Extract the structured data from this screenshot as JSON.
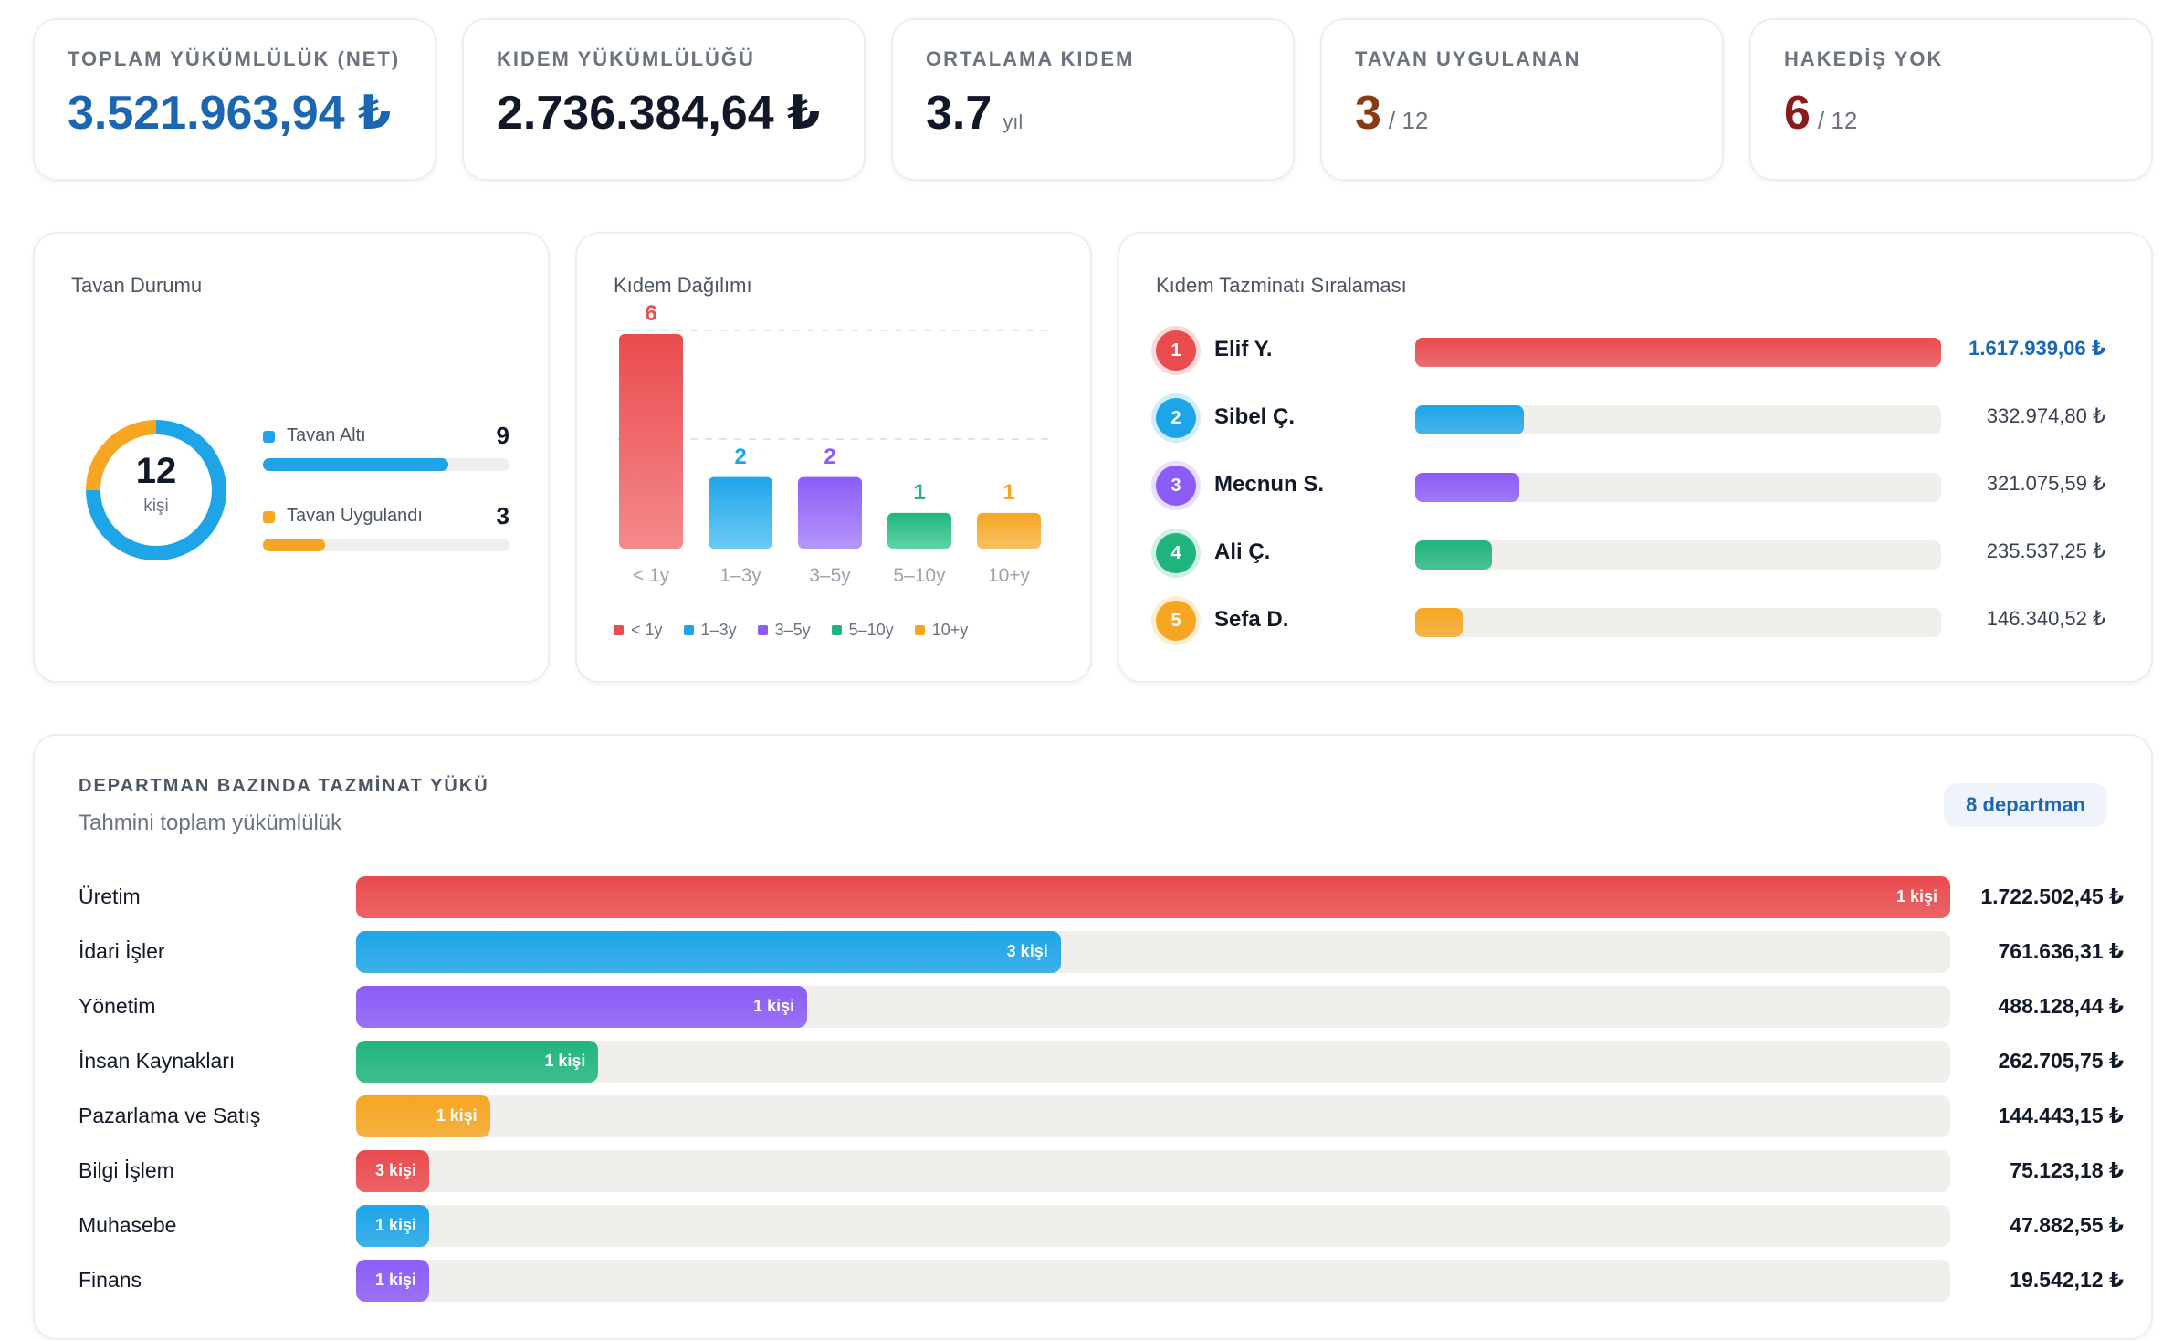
{
  "kpis": [
    {
      "label": "TOPLAM YÜKÜMLÜLÜK (NET)",
      "value": "3.521.963,94 ₺",
      "color": "#1a66b3"
    },
    {
      "label": "KIDEM YÜKÜMLÜLÜĞÜ",
      "value": "2.736.384,64 ₺",
      "color": "#111827"
    },
    {
      "label": "ORTALAMA KIDEM",
      "value": "3.7",
      "unit": "yıl",
      "color": "#111827"
    },
    {
      "label": "TAVAN UYGULANAN",
      "value": "3",
      "sub": "/ 12",
      "color": "#8a3a12"
    },
    {
      "label": "HAKEDİŞ YOK",
      "value": "6",
      "sub": "/ 12",
      "color": "#8b1c1c"
    }
  ],
  "tavan": {
    "title": "Tavan Durumu",
    "total": "12",
    "total_label": "kişi",
    "items": [
      {
        "label": "Tavan Altı",
        "count": "9",
        "fraction": 0.75,
        "color": "#1ea5e8"
      },
      {
        "label": "Tavan Uygulandı",
        "count": "3",
        "fraction": 0.25,
        "color": "#f6a623"
      }
    ]
  },
  "kidem": {
    "title": "Kıdem Dağılımı",
    "legend": [
      "< 1y",
      "1–3y",
      "3–5y",
      "5–10y",
      "10+y"
    ]
  },
  "chart_data": {
    "type": "bar",
    "title": "Kıdem Dağılımı",
    "categories": [
      "< 1y",
      "1–3y",
      "3–5y",
      "5–10y",
      "10+y"
    ],
    "values": [
      6,
      2,
      2,
      1,
      1
    ],
    "colors": [
      "#ea4b4e",
      "#1ea5e8",
      "#8b5cf6",
      "#20b57d",
      "#f6a623"
    ],
    "ylim": [
      0,
      6
    ]
  },
  "ranking": {
    "title": "Kıdem Tazminatı Sıralaması",
    "items": [
      {
        "rank": "1",
        "name": "Elif Y.",
        "value": "1.617.939,06 ₺",
        "fraction": 1.0,
        "color": "#ea4b4e",
        "highlight": true
      },
      {
        "rank": "2",
        "name": "Sibel Ç.",
        "value": "332.974,80 ₺",
        "fraction": 0.206,
        "color": "#1ea5e8"
      },
      {
        "rank": "3",
        "name": "Mecnun S.",
        "value": "321.075,59 ₺",
        "fraction": 0.198,
        "color": "#8b5cf6"
      },
      {
        "rank": "4",
        "name": "Ali Ç.",
        "value": "235.537,25 ₺",
        "fraction": 0.146,
        "color": "#20b57d"
      },
      {
        "rank": "5",
        "name": "Sefa D.",
        "value": "146.340,52 ₺",
        "fraction": 0.09,
        "color": "#f6a623"
      }
    ]
  },
  "departments": {
    "title": "DEPARTMAN BAZINDA TAZMİNAT YÜKÜ",
    "subtitle": "Tahmini toplam yükümlülük",
    "badge": "8 departman",
    "items": [
      {
        "name": "Üretim",
        "count": "1 kişi",
        "value": "1.722.502,45 ₺",
        "fraction": 1.0,
        "color": "#ea4b4e"
      },
      {
        "name": "İdari İşler",
        "count": "3 kişi",
        "value": "761.636,31 ₺",
        "fraction": 0.442,
        "color": "#1ea5e8"
      },
      {
        "name": "Yönetim",
        "count": "1 kişi",
        "value": "488.128,44 ₺",
        "fraction": 0.283,
        "color": "#8b5cf6"
      },
      {
        "name": "İnsan Kaynakları",
        "count": "1 kişi",
        "value": "262.705,75 ₺",
        "fraction": 0.152,
        "color": "#20b57d"
      },
      {
        "name": "Pazarlama ve Satış",
        "count": "1 kişi",
        "value": "144.443,15 ₺",
        "fraction": 0.084,
        "color": "#f6a623"
      },
      {
        "name": "Bilgi İşlem",
        "count": "3 kişi",
        "value": "75.123,18 ₺",
        "fraction": 0.044,
        "color": "#ea4b4e"
      },
      {
        "name": "Muhasebe",
        "count": "1 kişi",
        "value": "47.882,55 ₺",
        "fraction": 0.028,
        "color": "#1ea5e8"
      },
      {
        "name": "Finans",
        "count": "1 kişi",
        "value": "19.542,12 ₺",
        "fraction": 0.011,
        "color": "#8b5cf6"
      }
    ]
  }
}
